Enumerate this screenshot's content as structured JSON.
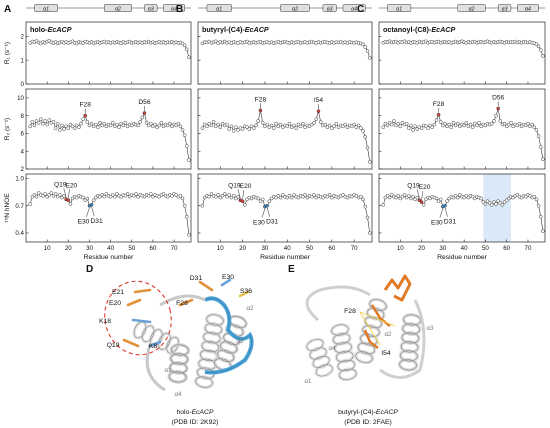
{
  "panels": [
    {
      "letter": "A",
      "title_prefix": "holo-",
      "title_suffix": "EcACP"
    },
    {
      "letter": "B",
      "title_prefix": "butyryl-(C4)-",
      "title_suffix": "EcACP"
    },
    {
      "letter": "C",
      "title_prefix": "octanoyl-(C8)-",
      "title_suffix": "EcACP"
    }
  ],
  "secondary_structure": [
    "α1",
    "α2",
    "α3",
    "α4"
  ],
  "axis_labels": {
    "r1": "R₁ (s⁻¹)",
    "r2": "R₂ (s⁻¹)",
    "noe": "¹⁵N hNOE",
    "x": "Residue number"
  },
  "x_ticks": [
    "10",
    "20",
    "30",
    "40",
    "50",
    "60",
    "70"
  ],
  "y_ticks": {
    "r1": [
      "2",
      "1",
      "0"
    ],
    "r2": [
      "10",
      "8",
      "6",
      "4",
      "2"
    ],
    "noe": [
      "1.0",
      "0.7",
      "0.4"
    ]
  },
  "annotations": {
    "A": {
      "r2": [
        "F28",
        "D56"
      ],
      "noe": [
        "Q19",
        "E20",
        "E30",
        "D31"
      ]
    },
    "B": {
      "r2": [
        "F28",
        "I54"
      ],
      "noe": [
        "Q19",
        "E20",
        "E30",
        "D31"
      ]
    },
    "C": {
      "r2": [
        "F28",
        "D56"
      ],
      "noe": [
        "Q19",
        "E20",
        "E30",
        "D31"
      ]
    }
  },
  "structures": {
    "D": {
      "letter": "D",
      "labels": [
        "D31",
        "E30",
        "S36",
        "E21",
        "F28",
        "E20",
        "K18",
        "Q19",
        "K8"
      ],
      "helices": [
        "α2",
        "α3",
        "α1",
        "α4"
      ],
      "caption_prefix": "holo-",
      "caption_suffix": "EcACP",
      "pdb": "(PDB ID: 2K92)"
    },
    "E": {
      "letter": "E",
      "labels": [
        "F28",
        "I54"
      ],
      "helices": [
        "α3",
        "α2",
        "α4",
        "α1"
      ],
      "caption_prefix": "butyryl-(C4)-",
      "caption_suffix": "EcACP",
      "pdb": "(PDB ID: 2FAE)"
    }
  },
  "chart_data": {
    "type": "scatter",
    "xlabel": "Residue number",
    "x": [
      2,
      3,
      4,
      5,
      6,
      7,
      8,
      9,
      10,
      11,
      12,
      13,
      14,
      15,
      16,
      17,
      18,
      19,
      20,
      21,
      22,
      23,
      24,
      25,
      26,
      27,
      28,
      29,
      30,
      31,
      32,
      33,
      34,
      35,
      36,
      37,
      38,
      39,
      40,
      41,
      42,
      43,
      44,
      45,
      46,
      47,
      48,
      49,
      50,
      51,
      52,
      53,
      54,
      55,
      56,
      57,
      58,
      59,
      60,
      61,
      62,
      63,
      64,
      65,
      66,
      67,
      68,
      69,
      70,
      71,
      72,
      73,
      74,
      75,
      76,
      77
    ],
    "xlim": [
      0,
      78
    ],
    "panels": [
      {
        "name": "holo-EcACP",
        "R1": {
          "ylabel": "R1 (s-1)",
          "ylim": [
            0,
            2.6
          ],
          "values": [
            1.72,
            1.78,
            1.75,
            1.8,
            1.74,
            1.7,
            1.76,
            1.73,
            1.78,
            1.81,
            1.75,
            1.72,
            1.76,
            1.7,
            1.74,
            1.78,
            1.73,
            1.76,
            1.72,
            1.75,
            1.79,
            1.73,
            1.7,
            1.76,
            1.74,
            1.72,
            1.78,
            1.75,
            1.73,
            1.76,
            1.71,
            1.74,
            1.77,
            1.72,
            1.75,
            1.78,
            1.74,
            1.76,
            1.72,
            1.75,
            1.73,
            1.77,
            1.74,
            1.71,
            1.76,
            1.73,
            1.75,
            1.78,
            1.72,
            1.74,
            1.77,
            1.73,
            1.75,
            1.72,
            1.76,
            1.74,
            1.78,
            1.73,
            1.75,
            1.71,
            1.74,
            1.77,
            1.73,
            1.76,
            1.72,
            1.75,
            1.74,
            1.77,
            1.73,
            1.75,
            1.72,
            1.74,
            1.7,
            1.62,
            1.45,
            1.12
          ]
        },
        "R2": {
          "ylabel": "R2 (s-1)",
          "ylim": [
            2,
            11
          ],
          "values": [
            6.8,
            7.3,
            6.9,
            7.4,
            7.2,
            7.6,
            7.1,
            7.4,
            7.0,
            7.5,
            7.2,
            7.3,
            6.6,
            7.1,
            6.4,
            6.9,
            6.5,
            6.8,
            6.6,
            7.0,
            6.8,
            6.6,
            6.9,
            6.7,
            7.1,
            7.6,
            8.0,
            7.3,
            6.9,
            7.1,
            6.8,
            7.0,
            6.7,
            7.2,
            6.9,
            7.1,
            6.8,
            7.0,
            6.9,
            7.2,
            6.8,
            7.0,
            6.7,
            7.1,
            6.9,
            7.2,
            6.8,
            7.0,
            6.9,
            7.1,
            7.0,
            6.9,
            7.3,
            7.8,
            8.3,
            7.2,
            6.9,
            7.1,
            6.8,
            7.0,
            6.7,
            6.9,
            7.2,
            6.8,
            7.0,
            6.9,
            7.1,
            6.8,
            7.0,
            6.9,
            7.1,
            6.8,
            6.4,
            5.8,
            4.6,
            3.0
          ]
        },
        "hNOE": {
          "ylabel": "15N hNOE",
          "ylim": [
            0.3,
            1.05
          ],
          "values": [
            0.72,
            0.8,
            0.82,
            0.8,
            0.84,
            0.82,
            0.81,
            0.83,
            0.8,
            0.82,
            0.84,
            0.81,
            0.83,
            0.8,
            0.82,
            0.79,
            0.81,
            0.77,
            0.76,
            0.72,
            0.78,
            0.8,
            0.79,
            0.81,
            0.8,
            0.79,
            0.76,
            0.78,
            0.7,
            0.71,
            0.76,
            0.79,
            0.81,
            0.8,
            0.82,
            0.8,
            0.83,
            0.81,
            0.8,
            0.82,
            0.8,
            0.83,
            0.81,
            0.8,
            0.82,
            0.81,
            0.83,
            0.8,
            0.82,
            0.81,
            0.83,
            0.8,
            0.82,
            0.81,
            0.8,
            0.82,
            0.81,
            0.83,
            0.8,
            0.82,
            0.81,
            0.8,
            0.82,
            0.83,
            0.81,
            0.8,
            0.82,
            0.81,
            0.83,
            0.82,
            0.8,
            0.81,
            0.78,
            0.7,
            0.58,
            0.38
          ]
        }
      },
      {
        "name": "butyryl-(C4)-EcACP",
        "R1": {
          "ylabel": "R1 (s-1)",
          "ylim": [
            0,
            2.6
          ],
          "values": [
            1.7,
            1.76,
            1.74,
            1.78,
            1.73,
            1.75,
            1.79,
            1.72,
            1.76,
            1.74,
            1.78,
            1.73,
            1.75,
            1.71,
            1.76,
            1.74,
            1.72,
            1.77,
            1.73,
            1.75,
            1.78,
            1.72,
            1.74,
            1.76,
            1.73,
            1.75,
            1.77,
            1.72,
            1.74,
            1.76,
            1.73,
            1.75,
            1.71,
            1.74,
            1.77,
            1.73,
            1.75,
            1.78,
            1.74,
            1.72,
            1.76,
            1.73,
            1.75,
            1.77,
            1.72,
            1.74,
            1.76,
            1.73,
            1.75,
            1.78,
            1.74,
            1.72,
            1.76,
            1.73,
            1.75,
            1.77,
            1.74,
            1.72,
            1.76,
            1.73,
            1.75,
            1.74,
            1.77,
            1.73,
            1.75,
            1.72,
            1.76,
            1.74,
            1.73,
            1.75,
            1.72,
            1.7,
            1.66,
            1.55,
            1.38,
            1.1
          ]
        },
        "R2": {
          "ylabel": "R2 (s-1)",
          "ylim": [
            2,
            11
          ],
          "values": [
            6.6,
            7.0,
            6.8,
            7.1,
            6.9,
            7.3,
            6.8,
            7.0,
            6.7,
            7.1,
            6.9,
            7.0,
            6.5,
            6.8,
            6.3,
            6.7,
            6.4,
            6.6,
            6.5,
            6.8,
            6.7,
            6.5,
            6.8,
            6.6,
            6.9,
            7.4,
            8.6,
            7.2,
            6.8,
            7.0,
            6.7,
            6.9,
            6.6,
            7.1,
            6.8,
            7.0,
            6.7,
            6.9,
            6.8,
            7.1,
            6.7,
            6.9,
            6.6,
            7.0,
            6.8,
            7.1,
            6.7,
            6.9,
            6.8,
            7.0,
            7.2,
            7.6,
            8.5,
            7.3,
            6.9,
            7.0,
            6.7,
            6.9,
            6.6,
            6.8,
            7.1,
            6.7,
            6.9,
            6.8,
            7.0,
            6.7,
            6.9,
            6.8,
            7.0,
            6.7,
            6.9,
            6.6,
            6.3,
            5.6,
            4.4,
            2.8
          ]
        },
        "hNOE": {
          "ylabel": "15N hNOE",
          "ylim": [
            0.3,
            1.05
          ],
          "values": [
            0.7,
            0.79,
            0.81,
            0.8,
            0.83,
            0.81,
            0.8,
            0.82,
            0.79,
            0.81,
            0.83,
            0.8,
            0.82,
            0.79,
            0.81,
            0.78,
            0.8,
            0.76,
            0.75,
            0.71,
            0.77,
            0.79,
            0.78,
            0.8,
            0.79,
            0.78,
            0.75,
            0.77,
            0.69,
            0.7,
            0.75,
            0.78,
            0.8,
            0.79,
            0.81,
            0.79,
            0.82,
            0.8,
            0.79,
            0.81,
            0.79,
            0.82,
            0.8,
            0.79,
            0.81,
            0.8,
            0.82,
            0.79,
            0.81,
            0.8,
            0.82,
            0.79,
            0.81,
            0.8,
            0.79,
            0.81,
            0.8,
            0.82,
            0.79,
            0.81,
            0.8,
            0.79,
            0.81,
            0.82,
            0.8,
            0.79,
            0.81,
            0.8,
            0.82,
            0.81,
            0.79,
            0.8,
            0.77,
            0.69,
            0.57,
            0.4
          ]
        }
      },
      {
        "name": "octanoyl-(C8)-EcACP",
        "R1": {
          "ylabel": "R1 (s-1)",
          "ylim": [
            0,
            2.6
          ],
          "values": [
            1.73,
            1.77,
            1.75,
            1.79,
            1.74,
            1.76,
            1.78,
            1.73,
            1.77,
            1.75,
            1.79,
            1.74,
            1.76,
            1.72,
            1.77,
            1.75,
            1.73,
            1.78,
            1.74,
            1.76,
            1.79,
            1.73,
            1.75,
            1.77,
            1.74,
            1.76,
            1.78,
            1.73,
            1.75,
            1.77,
            1.74,
            1.76,
            1.72,
            1.75,
            1.78,
            1.74,
            1.76,
            1.79,
            1.75,
            1.73,
            1.77,
            1.74,
            1.76,
            1.78,
            1.73,
            1.75,
            1.77,
            1.74,
            1.76,
            1.79,
            1.75,
            1.73,
            1.77,
            1.74,
            1.76,
            1.78,
            1.75,
            1.73,
            1.77,
            1.74,
            1.76,
            1.75,
            1.78,
            1.74,
            1.76,
            1.73,
            1.77,
            1.75,
            1.74,
            1.76,
            1.73,
            1.71,
            1.67,
            1.58,
            1.42,
            1.18
          ]
        },
        "R2": {
          "ylabel": "R2 (s-1)",
          "ylim": [
            2,
            11
          ],
          "values": [
            6.7,
            7.1,
            6.9,
            7.2,
            7.0,
            7.4,
            6.9,
            7.1,
            6.8,
            7.2,
            7.0,
            7.1,
            6.6,
            6.9,
            6.4,
            6.8,
            6.5,
            6.7,
            6.6,
            6.9,
            6.8,
            6.6,
            6.9,
            6.7,
            7.0,
            7.5,
            8.1,
            7.3,
            6.9,
            7.1,
            6.8,
            7.0,
            6.7,
            7.2,
            6.9,
            7.1,
            6.8,
            7.0,
            6.9,
            7.2,
            6.8,
            7.0,
            6.7,
            7.1,
            6.9,
            7.2,
            6.8,
            7.0,
            6.9,
            7.1,
            7.0,
            7.1,
            7.4,
            8.0,
            8.8,
            7.4,
            7.0,
            7.1,
            6.8,
            7.0,
            7.2,
            6.8,
            7.0,
            6.9,
            7.1,
            6.8,
            7.0,
            6.9,
            7.1,
            6.8,
            7.0,
            6.7,
            6.4,
            5.7,
            4.5,
            3.1
          ]
        },
        "hNOE": {
          "ylabel": "15N hNOE",
          "ylim": [
            0.3,
            1.05
          ],
          "values": [
            0.71,
            0.79,
            0.81,
            0.79,
            0.82,
            0.8,
            0.79,
            0.81,
            0.78,
            0.8,
            0.82,
            0.79,
            0.81,
            0.78,
            0.8,
            0.77,
            0.79,
            0.76,
            0.74,
            0.71,
            0.77,
            0.79,
            0.78,
            0.8,
            0.79,
            0.78,
            0.75,
            0.77,
            0.69,
            0.7,
            0.75,
            0.78,
            0.8,
            0.79,
            0.81,
            0.79,
            0.82,
            0.8,
            0.79,
            0.81,
            0.79,
            0.81,
            0.8,
            0.78,
            0.8,
            0.79,
            0.78,
            0.74,
            0.72,
            0.75,
            0.73,
            0.71,
            0.74,
            0.72,
            0.75,
            0.73,
            0.71,
            0.74,
            0.76,
            0.78,
            0.8,
            0.79,
            0.81,
            0.82,
            0.8,
            0.79,
            0.81,
            0.8,
            0.82,
            0.81,
            0.79,
            0.8,
            0.77,
            0.7,
            0.58,
            0.42
          ]
        },
        "highlight_residues": [
          49,
          62
        ]
      }
    ]
  }
}
